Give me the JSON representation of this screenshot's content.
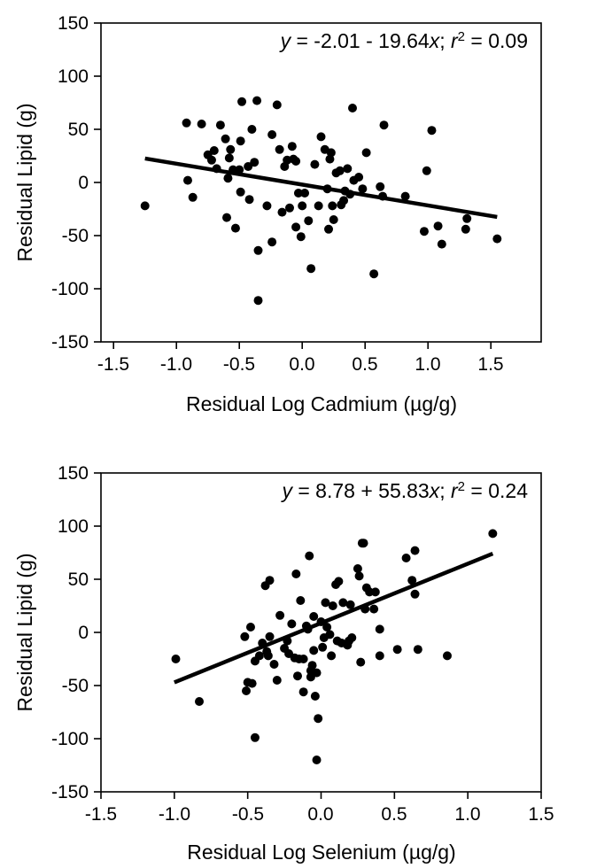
{
  "chart_data": [
    {
      "type": "scatter",
      "xlabel": "Residual Log Cadmium (µg/g)",
      "ylabel": "Residual Lipid (g)",
      "xlim": [
        -1.6,
        1.9
      ],
      "ylim": [
        -150,
        150
      ],
      "xticks": [
        -1.5,
        -1.0,
        -0.5,
        0.0,
        0.5,
        1.0,
        1.5
      ],
      "xtick_labels": [
        "-1.5",
        "-1.0",
        "-0.5",
        "0.0",
        "0.5",
        "1.0",
        "1.5"
      ],
      "yticks": [
        -150,
        -100,
        -50,
        0,
        50,
        100,
        150
      ],
      "ytick_labels": [
        "-150",
        "-100",
        "-50",
        "0",
        "50",
        "100",
        "150"
      ],
      "annotation": {
        "y_var": "y",
        "eq_part": " = -2.01 - 19.64",
        "x_var": "x",
        "sep": "; ",
        "r_var": "r",
        "sup": "2",
        "r_part": " = 0.09"
      },
      "fit": {
        "intercept": -2.01,
        "slope": -19.64,
        "x_range": [
          -1.25,
          1.55
        ]
      },
      "points": [
        [
          -1.25,
          -22
        ],
        [
          -0.92,
          56
        ],
        [
          -0.91,
          2
        ],
        [
          -0.87,
          -14
        ],
        [
          -0.8,
          55
        ],
        [
          -0.75,
          26
        ],
        [
          -0.72,
          21
        ],
        [
          -0.7,
          30
        ],
        [
          -0.68,
          13
        ],
        [
          -0.65,
          54
        ],
        [
          -0.61,
          41
        ],
        [
          -0.6,
          -33
        ],
        [
          -0.59,
          4
        ],
        [
          -0.58,
          23
        ],
        [
          -0.57,
          31
        ],
        [
          -0.55,
          12
        ],
        [
          -0.53,
          -43
        ],
        [
          -0.5,
          12
        ],
        [
          -0.49,
          -9
        ],
        [
          -0.49,
          39
        ],
        [
          -0.48,
          76
        ],
        [
          -0.43,
          15
        ],
        [
          -0.42,
          -16
        ],
        [
          -0.4,
          50
        ],
        [
          -0.38,
          19
        ],
        [
          -0.36,
          77
        ],
        [
          -0.35,
          -64
        ],
        [
          -0.35,
          -111
        ],
        [
          -0.28,
          -22
        ],
        [
          -0.24,
          45
        ],
        [
          -0.24,
          -56
        ],
        [
          -0.2,
          73
        ],
        [
          -0.18,
          31
        ],
        [
          -0.16,
          -28
        ],
        [
          -0.14,
          15
        ],
        [
          -0.12,
          21
        ],
        [
          -0.1,
          -24
        ],
        [
          -0.08,
          34
        ],
        [
          -0.07,
          22
        ],
        [
          -0.05,
          20
        ],
        [
          -0.05,
          -42
        ],
        [
          -0.03,
          -10
        ],
        [
          -0.01,
          -51
        ],
        [
          0.0,
          -22
        ],
        [
          0.02,
          -10
        ],
        [
          0.05,
          -36
        ],
        [
          0.07,
          -81
        ],
        [
          0.1,
          17
        ],
        [
          0.13,
          -22
        ],
        [
          0.15,
          43
        ],
        [
          0.18,
          31
        ],
        [
          0.2,
          -6
        ],
        [
          0.21,
          -44
        ],
        [
          0.22,
          22
        ],
        [
          0.23,
          28
        ],
        [
          0.24,
          -22
        ],
        [
          0.25,
          -35
        ],
        [
          0.27,
          9
        ],
        [
          0.3,
          11
        ],
        [
          0.31,
          -21
        ],
        [
          0.33,
          -17
        ],
        [
          0.34,
          -8
        ],
        [
          0.36,
          13
        ],
        [
          0.38,
          -11
        ],
        [
          0.4,
          70
        ],
        [
          0.41,
          2
        ],
        [
          0.45,
          5
        ],
        [
          0.48,
          -6
        ],
        [
          0.51,
          28
        ],
        [
          0.57,
          -86
        ],
        [
          0.62,
          -4
        ],
        [
          0.64,
          -13
        ],
        [
          0.65,
          54
        ],
        [
          0.82,
          -13
        ],
        [
          0.97,
          -46
        ],
        [
          0.99,
          11
        ],
        [
          1.03,
          49
        ],
        [
          1.08,
          -41
        ],
        [
          1.11,
          -58
        ],
        [
          1.3,
          -44
        ],
        [
          1.31,
          -34
        ],
        [
          1.55,
          -53
        ]
      ]
    },
    {
      "type": "scatter",
      "xlabel": "Residual Log Selenium (µg/g)",
      "ylabel": "Residual Lipid (g)",
      "xlim": [
        -1.5,
        1.5
      ],
      "ylim": [
        -150,
        150
      ],
      "xticks": [
        -1.5,
        -1.0,
        -0.5,
        0.0,
        0.5,
        1.0,
        1.5
      ],
      "xtick_labels": [
        "-1.5",
        "-1.0",
        "-0.5",
        "0.0",
        "0.5",
        "1.0",
        "1.5"
      ],
      "yticks": [
        -150,
        -100,
        -50,
        0,
        50,
        100,
        150
      ],
      "ytick_labels": [
        "-150",
        "-100",
        "-50",
        "0",
        "50",
        "100",
        "150"
      ],
      "annotation": {
        "y_var": "y",
        "eq_part": " = 8.78 + 55.83",
        "x_var": "x",
        "sep": "; ",
        "r_var": "r",
        "sup": "2",
        "r_part": " = 0.24"
      },
      "fit": {
        "intercept": 8.78,
        "slope": 55.83,
        "x_range": [
          -1.0,
          1.17
        ]
      },
      "points": [
        [
          -0.99,
          -25
        ],
        [
          -0.83,
          -65
        ],
        [
          -0.52,
          -4
        ],
        [
          -0.51,
          -55
        ],
        [
          -0.5,
          -47
        ],
        [
          -0.48,
          5
        ],
        [
          -0.47,
          -48
        ],
        [
          -0.45,
          -99
        ],
        [
          -0.45,
          -27
        ],
        [
          -0.42,
          -22
        ],
        [
          -0.4,
          -10
        ],
        [
          -0.38,
          44
        ],
        [
          -0.37,
          -18
        ],
        [
          -0.36,
          -22
        ],
        [
          -0.35,
          49
        ],
        [
          -0.35,
          -4
        ],
        [
          -0.32,
          -30
        ],
        [
          -0.3,
          -45
        ],
        [
          -0.28,
          16
        ],
        [
          -0.25,
          -15
        ],
        [
          -0.23,
          -8
        ],
        [
          -0.22,
          -20
        ],
        [
          -0.2,
          8
        ],
        [
          -0.18,
          -24
        ],
        [
          -0.17,
          55
        ],
        [
          -0.16,
          -41
        ],
        [
          -0.15,
          -25
        ],
        [
          -0.14,
          30
        ],
        [
          -0.12,
          -25
        ],
        [
          -0.12,
          -56
        ],
        [
          -0.1,
          6
        ],
        [
          -0.09,
          3
        ],
        [
          -0.08,
          72
        ],
        [
          -0.07,
          -36
        ],
        [
          -0.07,
          -42
        ],
        [
          -0.06,
          -31
        ],
        [
          -0.05,
          -17
        ],
        [
          -0.05,
          15
        ],
        [
          -0.04,
          -60
        ],
        [
          -0.03,
          -38
        ],
        [
          -0.03,
          -120
        ],
        [
          -0.02,
          -81
        ],
        [
          0.0,
          10
        ],
        [
          0.01,
          -14
        ],
        [
          0.02,
          -5
        ],
        [
          0.03,
          28
        ],
        [
          0.04,
          5
        ],
        [
          0.06,
          -2
        ],
        [
          0.07,
          -22
        ],
        [
          0.08,
          25
        ],
        [
          0.1,
          45
        ],
        [
          0.11,
          -8
        ],
        [
          0.12,
          48
        ],
        [
          0.14,
          -10
        ],
        [
          0.15,
          28
        ],
        [
          0.18,
          -12
        ],
        [
          0.19,
          -8
        ],
        [
          0.2,
          26
        ],
        [
          0.21,
          -5
        ],
        [
          0.25,
          60
        ],
        [
          0.26,
          53
        ],
        [
          0.27,
          -28
        ],
        [
          0.28,
          84
        ],
        [
          0.29,
          84
        ],
        [
          0.3,
          22
        ],
        [
          0.31,
          42
        ],
        [
          0.33,
          38
        ],
        [
          0.36,
          22
        ],
        [
          0.37,
          38
        ],
        [
          0.4,
          3
        ],
        [
          0.4,
          -22
        ],
        [
          0.52,
          -16
        ],
        [
          0.58,
          70
        ],
        [
          0.62,
          49
        ],
        [
          0.64,
          77
        ],
        [
          0.64,
          36
        ],
        [
          0.66,
          -16
        ],
        [
          0.86,
          -22
        ],
        [
          1.17,
          93
        ]
      ]
    }
  ]
}
